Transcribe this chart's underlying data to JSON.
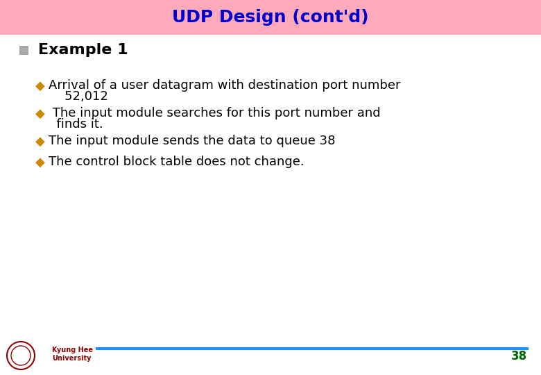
{
  "title": "UDP Design (cont'd)",
  "title_color": "#0000CC",
  "title_bg_color": "#FFAABB",
  "title_fontsize": 18,
  "example_fontsize": 16,
  "bullet_color": "#CC8800",
  "bullet_char": "◆",
  "bullet_line1": "Arrival of a user datagram with destination port number",
  "bullet_line1b": "    52,012",
  "bullet_line2": " The input module searches for this port number and",
  "bullet_line2b": "  finds it.",
  "bullet_line3": "The input module sends the data to queue 38",
  "bullet_line4": "The control block table does not change.",
  "bullet_fontsize": 13,
  "footer_line_color": "#1E90FF",
  "page_number": "38",
  "page_number_color": "#006400",
  "page_number_fontsize": 12,
  "bg_color": "#FFFFFF",
  "khu_text": "Kyung Hee\nUniversity",
  "khu_color": "#8B0000",
  "khu_fontsize": 7
}
